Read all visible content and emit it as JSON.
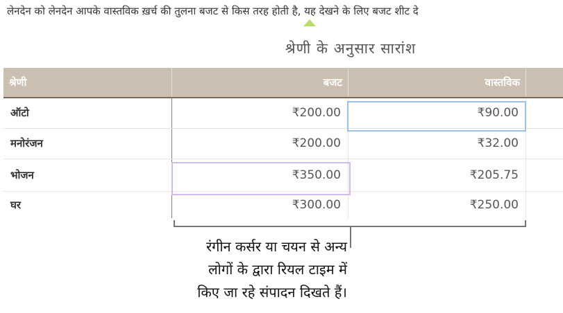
{
  "intro_text": "लेनदेन को लेनदेन आपके वास्तविक ख़र्च की तुलना बजट से किस तरह होती है, यह देखने के लिए बजट शीट दे",
  "table_title": "श्रेणी के अनुसार सारांश",
  "headers": {
    "category": "श्रेणी",
    "budget": "बजट",
    "actual": "वास्तविक"
  },
  "rows": [
    {
      "category": "ऑटो",
      "budget": "₹200.00",
      "actual": "₹90.00"
    },
    {
      "category": "मनोरंजन",
      "budget": "₹200.00",
      "actual": "₹32.00"
    },
    {
      "category": "भोजन",
      "budget": "₹350.00",
      "actual": "₹205.75"
    },
    {
      "category": "घर",
      "budget": "₹300.00",
      "actual": "₹250.00"
    }
  ],
  "callout": [
    "रंगीन कर्सर या चयन से अन्य",
    "लोगों के द्वारा रियल टाइम में",
    "किए जा रहे संपादन दिखते हैं।"
  ],
  "colors": {
    "header_bg": "#cbbfb2",
    "collaborator_blue": "#9cc0e6",
    "collaborator_purple": "#d5b9ea",
    "pointer_green": "#b6dd6a"
  }
}
